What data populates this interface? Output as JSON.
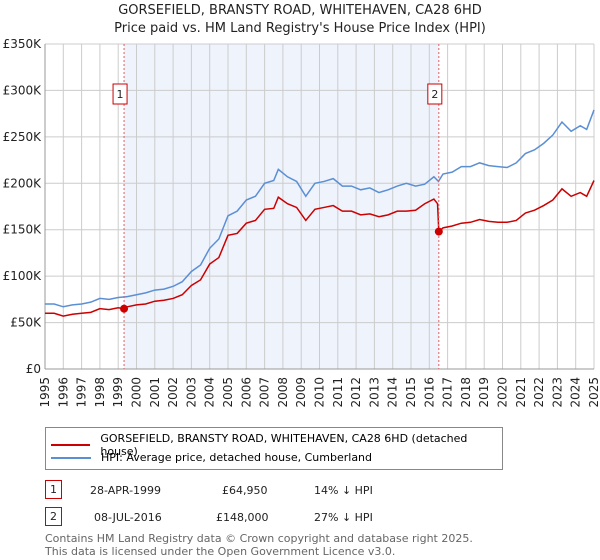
{
  "title": "GORSEFIELD, BRANSTY ROAD, WHITEHAVEN, CA28 6HD",
  "subtitle": "Price paid vs. HM Land Registry's House Price Index (HPI)",
  "colors": {
    "price": "#cc0000",
    "hpi": "#5b8fd4",
    "shade": "#eef3fc"
  },
  "chart_data": {
    "type": "line",
    "title": "GORSEFIELD, BRANSTY ROAD, WHITEHAVEN, CA28 6HD",
    "ylim": [
      0,
      350000
    ],
    "xlim": [
      1995,
      2025
    ],
    "yticks": [
      {
        "v": 0,
        "label": "£0"
      },
      {
        "v": 50000,
        "label": "£50K"
      },
      {
        "v": 100000,
        "label": "£100K"
      },
      {
        "v": 150000,
        "label": "£150K"
      },
      {
        "v": 200000,
        "label": "£200K"
      },
      {
        "v": 250000,
        "label": "£250K"
      },
      {
        "v": 300000,
        "label": "£300K"
      },
      {
        "v": 350000,
        "label": "£350K"
      }
    ],
    "xticks": [
      "1995",
      "1996",
      "1997",
      "1998",
      "1999",
      "2000",
      "2001",
      "2002",
      "2003",
      "2004",
      "2005",
      "2006",
      "2007",
      "2008",
      "2009",
      "2010",
      "2011",
      "2012",
      "2013",
      "2014",
      "2015",
      "2016",
      "2017",
      "2018",
      "2019",
      "2020",
      "2021",
      "2022",
      "2023",
      "2024",
      "2025"
    ],
    "series": [
      {
        "name": "HPI: Average price, detached house, Cumberland",
        "x": [
          1995,
          1995.5,
          1996,
          1996.5,
          1997,
          1997.5,
          1998,
          1998.5,
          1999,
          1999.5,
          2000,
          2000.5,
          2001,
          2001.5,
          2002,
          2002.5,
          2003,
          2003.5,
          2004,
          2004.5,
          2005,
          2005.5,
          2006,
          2006.5,
          2007,
          2007.5,
          2007.75,
          2008.25,
          2008.75,
          2009.25,
          2009.75,
          2010.25,
          2010.75,
          2011.25,
          2011.75,
          2012.25,
          2012.75,
          2013.25,
          2013.75,
          2014.25,
          2014.75,
          2015.25,
          2015.75,
          2016.25,
          2016.5,
          2016.75,
          2017.25,
          2017.75,
          2018.25,
          2018.75,
          2019.25,
          2019.75,
          2020.25,
          2020.75,
          2021.25,
          2021.75,
          2022.25,
          2022.75,
          2023.25,
          2023.75,
          2024.25,
          2024.6,
          2025
        ],
        "y": [
          70000,
          70000,
          67000,
          69000,
          70000,
          72000,
          76000,
          75000,
          77000,
          78000,
          80000,
          82000,
          85000,
          86000,
          89000,
          94000,
          105000,
          112000,
          130000,
          140000,
          165000,
          170000,
          182000,
          186000,
          200000,
          203000,
          215000,
          207000,
          202000,
          186000,
          200000,
          202000,
          205000,
          197000,
          197000,
          193000,
          195000,
          190000,
          193000,
          197000,
          200000,
          197000,
          199000,
          207000,
          202000,
          210000,
          212000,
          218000,
          218000,
          222000,
          219000,
          218000,
          217000,
          222000,
          232000,
          236000,
          243000,
          252000,
          266000,
          256000,
          262000,
          258000,
          279000
        ]
      },
      {
        "name": "GORSEFIELD, BRANSTY ROAD, WHITEHAVEN, CA28 6HD (detached house)",
        "x": [
          1995,
          1995.5,
          1996,
          1996.5,
          1997,
          1997.5,
          1998,
          1998.5,
          1999,
          1999.32,
          1999.5,
          2000,
          2000.5,
          2001,
          2001.5,
          2002,
          2002.5,
          2003,
          2003.5,
          2004,
          2004.5,
          2005,
          2005.5,
          2006,
          2006.5,
          2007,
          2007.5,
          2007.75,
          2008.25,
          2008.75,
          2009.25,
          2009.75,
          2010.25,
          2010.75,
          2011.25,
          2011.75,
          2012.25,
          2012.75,
          2013.25,
          2013.75,
          2014.25,
          2014.75,
          2015.25,
          2015.75,
          2016.25,
          2016.45,
          2016.52,
          2016.75,
          2017.25,
          2017.75,
          2018.25,
          2018.75,
          2019.25,
          2019.75,
          2020.25,
          2020.75,
          2021.25,
          2021.75,
          2022.25,
          2022.75,
          2023.25,
          2023.75,
          2024.25,
          2024.6,
          2025
        ],
        "y": [
          60000,
          60000,
          57000,
          59000,
          60000,
          61000,
          65000,
          64000,
          66000,
          64950,
          67000,
          69000,
          70000,
          73000,
          74000,
          76000,
          80000,
          90000,
          96000,
          113000,
          120000,
          144000,
          146000,
          157000,
          160000,
          172000,
          173000,
          185000,
          178000,
          174000,
          160000,
          172000,
          174000,
          176000,
          170000,
          170000,
          166000,
          167000,
          164000,
          166000,
          170000,
          170000,
          171000,
          178000,
          183000,
          178000,
          148000,
          152000,
          154000,
          157000,
          158000,
          161000,
          159000,
          158000,
          158000,
          160000,
          168000,
          171000,
          176000,
          182000,
          194000,
          186000,
          190000,
          186000,
          203000
        ]
      }
    ],
    "annotations": [
      {
        "label": "1",
        "x": 1999.32,
        "y": 64950
      },
      {
        "label": "2",
        "x": 2016.52,
        "y": 148000
      }
    ],
    "shaded_range": [
      1999.32,
      2016.52
    ]
  },
  "legend": [
    {
      "label": "GORSEFIELD, BRANSTY ROAD, WHITEHAVEN, CA28 6HD (detached house)"
    },
    {
      "label": "HPI: Average price, detached house, Cumberland"
    }
  ],
  "transactions": [
    {
      "num": "1",
      "date": "28-APR-1999",
      "price": "£64,950",
      "hpi": "14% ↓ HPI"
    },
    {
      "num": "2",
      "date": "08-JUL-2016",
      "price": "£148,000",
      "hpi": "27% ↓ HPI"
    }
  ],
  "footer": [
    "Contains HM Land Registry data © Crown copyright and database right 2025.",
    "This data is licensed under the Open Government Licence v3.0."
  ]
}
